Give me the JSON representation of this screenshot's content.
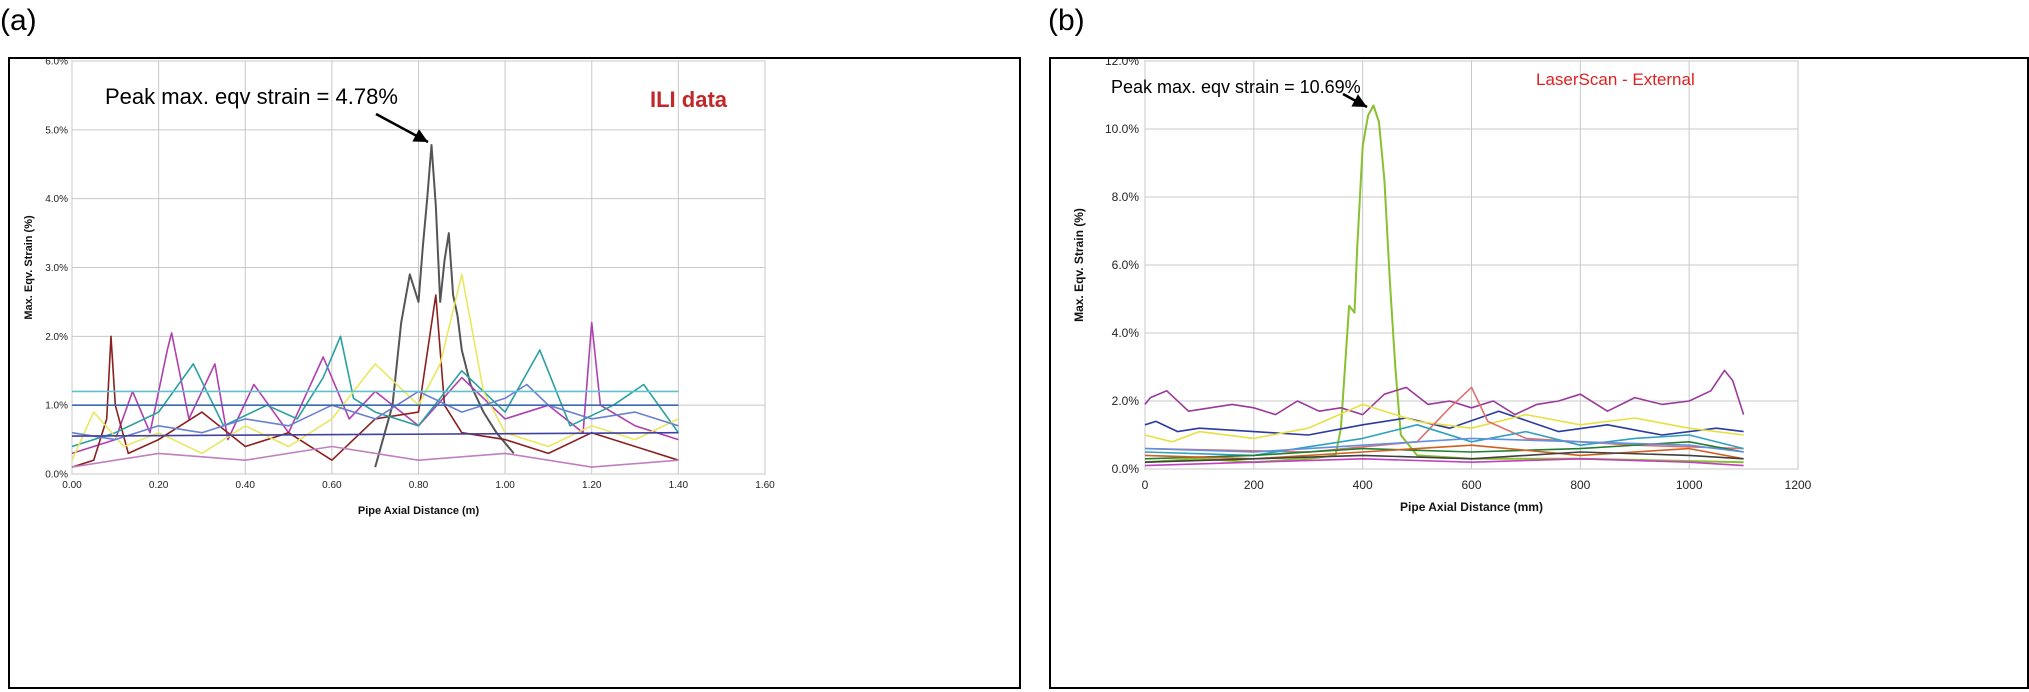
{
  "panels": [
    {
      "label": "(a)"
    },
    {
      "label": "(b)"
    }
  ],
  "chart_data": [
    {
      "type": "line",
      "xlabel": "Pipe Axial Distance (m)",
      "ylabel": "Max. Eqv. Strain (%)",
      "xlim": [
        0,
        1.6
      ],
      "ylim": [
        0,
        6.0
      ],
      "x_ticks": [
        "0.00",
        "0.20",
        "0.40",
        "0.60",
        "0.80",
        "1.00",
        "1.20",
        "1.40",
        "1.60"
      ],
      "y_ticks": [
        "0.0%",
        "1.0%",
        "2.0%",
        "3.0%",
        "4.0%",
        "5.0%",
        "6.0%"
      ],
      "grid": true,
      "annotations": [
        {
          "text": "Peak max. eqv strain = 4.78%",
          "x": 0.83,
          "y": 4.78
        },
        {
          "text": "ILI data",
          "color": "#c0282a"
        }
      ],
      "series": [
        {
          "color": "#555555",
          "x": [
            0.7,
            0.74,
            0.76,
            0.78,
            0.8,
            0.81,
            0.82,
            0.83,
            0.84,
            0.85,
            0.86,
            0.87,
            0.88,
            0.89,
            0.9,
            0.92,
            0.95,
            0.98,
            1.02
          ],
          "y": [
            0.1,
            1.0,
            2.2,
            2.9,
            2.5,
            3.3,
            4.0,
            4.78,
            3.9,
            2.5,
            3.1,
            3.5,
            2.6,
            2.3,
            1.8,
            1.3,
            0.9,
            0.6,
            0.3
          ]
        },
        {
          "color": "#b040b0",
          "x": [
            0.0,
            0.1,
            0.14,
            0.18,
            0.22,
            0.23,
            0.27,
            0.33,
            0.36,
            0.42,
            0.5,
            0.58,
            0.64,
            0.7,
            0.8,
            0.9,
            1.0,
            1.1,
            1.18,
            1.2,
            1.22,
            1.3,
            1.4
          ],
          "y": [
            0.3,
            0.5,
            1.2,
            0.6,
            1.8,
            2.05,
            0.8,
            1.6,
            0.5,
            1.3,
            0.6,
            1.7,
            0.8,
            1.2,
            0.7,
            1.4,
            0.8,
            1.0,
            0.6,
            2.2,
            1.0,
            0.7,
            0.5
          ]
        },
        {
          "color": "#8b2020",
          "x": [
            0.0,
            0.05,
            0.08,
            0.09,
            0.1,
            0.13,
            0.2,
            0.3,
            0.4,
            0.5,
            0.6,
            0.7,
            0.8,
            0.84,
            0.86,
            0.9,
            1.0,
            1.1,
            1.2,
            1.3,
            1.4
          ],
          "y": [
            0.1,
            0.2,
            0.8,
            2.0,
            1.0,
            0.3,
            0.5,
            0.9,
            0.4,
            0.6,
            0.2,
            0.8,
            0.9,
            2.6,
            1.0,
            0.6,
            0.5,
            0.3,
            0.6,
            0.4,
            0.2
          ]
        },
        {
          "color": "#2aa0a0",
          "x": [
            0.0,
            0.1,
            0.2,
            0.28,
            0.35,
            0.45,
            0.52,
            0.58,
            0.62,
            0.65,
            0.7,
            0.8,
            0.9,
            1.0,
            1.08,
            1.15,
            1.25,
            1.32,
            1.4
          ],
          "y": [
            0.4,
            0.6,
            0.9,
            1.6,
            0.7,
            1.0,
            0.8,
            1.4,
            2.0,
            1.1,
            0.9,
            0.7,
            1.5,
            0.9,
            1.8,
            0.7,
            1.0,
            1.3,
            0.6
          ]
        },
        {
          "color": "#e8e860",
          "x": [
            0.0,
            0.05,
            0.12,
            0.2,
            0.3,
            0.4,
            0.5,
            0.6,
            0.7,
            0.8,
            0.85,
            0.9,
            0.95,
            1.0,
            1.1,
            1.2,
            1.3,
            1.4
          ],
          "y": [
            0.2,
            0.9,
            0.4,
            0.6,
            0.3,
            0.7,
            0.4,
            0.8,
            1.6,
            1.0,
            1.6,
            2.9,
            1.2,
            0.6,
            0.4,
            0.7,
            0.5,
            0.8
          ]
        },
        {
          "color": "#6a80d0",
          "x": [
            0.0,
            0.1,
            0.2,
            0.3,
            0.4,
            0.5,
            0.6,
            0.7,
            0.8,
            0.9,
            1.0,
            1.05,
            1.1,
            1.2,
            1.3,
            1.4
          ],
          "y": [
            0.6,
            0.5,
            0.7,
            0.6,
            0.8,
            0.7,
            1.0,
            0.8,
            1.2,
            0.9,
            1.1,
            1.3,
            1.0,
            0.8,
            0.9,
            0.7
          ]
        },
        {
          "color": "#4040a0",
          "x": [
            0.0,
            1.4
          ],
          "y": [
            0.55,
            0.6
          ]
        },
        {
          "color": "#60c0d0",
          "x": [
            0.0,
            1.4
          ],
          "y": [
            1.2,
            1.2
          ]
        },
        {
          "color": "#3a6ab0",
          "x": [
            0.0,
            1.4
          ],
          "y": [
            1.0,
            1.0
          ]
        },
        {
          "color": "#c080c0",
          "x": [
            0.0,
            0.2,
            0.4,
            0.6,
            0.8,
            1.0,
            1.2,
            1.4
          ],
          "y": [
            0.1,
            0.3,
            0.2,
            0.4,
            0.2,
            0.3,
            0.1,
            0.2
          ]
        }
      ]
    },
    {
      "type": "line",
      "xlabel": "Pipe Axial Distance (mm)",
      "ylabel": "Max. Eqv. Strain (%)",
      "xlim": [
        0,
        1200
      ],
      "ylim": [
        0,
        12.0
      ],
      "x_ticks": [
        "0",
        "200",
        "400",
        "600",
        "800",
        "1000",
        "1200"
      ],
      "y_ticks": [
        "0.0%",
        "2.0%",
        "4.0%",
        "6.0%",
        "8.0%",
        "10.0%",
        "12.0%"
      ],
      "grid": true,
      "annotations": [
        {
          "text": "Peak max. eqv strain = 10.69%",
          "x": 420,
          "y": 10.69
        },
        {
          "text": "LaserScan - External",
          "color": "#e02020"
        }
      ],
      "series": [
        {
          "color": "#88c030",
          "x": [
            0,
            100,
            200,
            300,
            350,
            360,
            375,
            385,
            390,
            400,
            410,
            420,
            430,
            440,
            450,
            460,
            470,
            500,
            600,
            800,
            1100
          ],
          "y": [
            0.2,
            0.3,
            0.2,
            0.3,
            0.4,
            1.2,
            4.8,
            4.6,
            6.5,
            9.5,
            10.4,
            10.69,
            10.2,
            8.5,
            5.5,
            3.0,
            1.0,
            0.4,
            0.3,
            0.3,
            0.2
          ]
        },
        {
          "color": "#9a3a9a",
          "x": [
            0,
            10,
            40,
            80,
            120,
            160,
            200,
            240,
            280,
            320,
            360,
            400,
            440,
            480,
            520,
            560,
            600,
            640,
            680,
            720,
            760,
            800,
            850,
            900,
            950,
            1000,
            1040,
            1065,
            1080,
            1100
          ],
          "y": [
            1.9,
            2.1,
            2.3,
            1.7,
            1.8,
            1.9,
            1.8,
            1.6,
            2.0,
            1.7,
            1.8,
            1.6,
            2.2,
            2.4,
            1.9,
            2.0,
            1.8,
            2.0,
            1.6,
            1.9,
            2.0,
            2.2,
            1.7,
            2.1,
            1.9,
            2.0,
            2.3,
            2.9,
            2.6,
            1.6
          ]
        },
        {
          "color": "#2a3aa0",
          "x": [
            0,
            20,
            60,
            100,
            200,
            300,
            400,
            480,
            560,
            650,
            760,
            850,
            950,
            1050,
            1100
          ],
          "y": [
            1.3,
            1.4,
            1.1,
            1.2,
            1.1,
            1.0,
            1.3,
            1.5,
            1.2,
            1.7,
            1.1,
            1.3,
            1.0,
            1.2,
            1.1
          ]
        },
        {
          "color": "#e8e040",
          "x": [
            0,
            50,
            100,
            200,
            300,
            400,
            500,
            600,
            700,
            800,
            900,
            1000,
            1100
          ],
          "y": [
            1.0,
            0.8,
            1.1,
            0.9,
            1.2,
            1.9,
            1.4,
            1.2,
            1.6,
            1.3,
            1.5,
            1.2,
            1.0
          ]
        },
        {
          "color": "#e07070",
          "x": [
            0,
            300,
            500,
            560,
            600,
            630,
            700,
            900,
            1100
          ],
          "y": [
            0.6,
            0.5,
            0.8,
            1.8,
            2.4,
            1.4,
            0.9,
            0.7,
            0.6
          ]
        },
        {
          "color": "#30a0c0",
          "x": [
            0,
            200,
            400,
            500,
            600,
            700,
            800,
            900,
            1000,
            1100
          ],
          "y": [
            0.5,
            0.4,
            0.9,
            1.3,
            0.8,
            1.1,
            0.7,
            0.9,
            1.0,
            0.6
          ]
        },
        {
          "color": "#208030",
          "x": [
            0,
            200,
            400,
            600,
            800,
            1000,
            1100
          ],
          "y": [
            0.3,
            0.4,
            0.6,
            0.5,
            0.6,
            0.8,
            0.5
          ]
        },
        {
          "color": "#d06020",
          "x": [
            0,
            200,
            400,
            600,
            800,
            1000,
            1100
          ],
          "y": [
            0.4,
            0.3,
            0.5,
            0.7,
            0.4,
            0.6,
            0.3
          ]
        },
        {
          "color": "#404040",
          "x": [
            0,
            200,
            400,
            600,
            800,
            1000,
            1100
          ],
          "y": [
            0.2,
            0.3,
            0.4,
            0.3,
            0.5,
            0.4,
            0.3
          ]
        },
        {
          "color": "#6090e0",
          "x": [
            0,
            200,
            400,
            600,
            800,
            1000,
            1100
          ],
          "y": [
            0.6,
            0.5,
            0.7,
            0.9,
            0.8,
            0.7,
            0.5
          ]
        },
        {
          "color": "#c040c0",
          "x": [
            0,
            200,
            400,
            600,
            800,
            1000,
            1100
          ],
          "y": [
            0.1,
            0.2,
            0.3,
            0.2,
            0.3,
            0.2,
            0.1
          ]
        }
      ]
    }
  ]
}
